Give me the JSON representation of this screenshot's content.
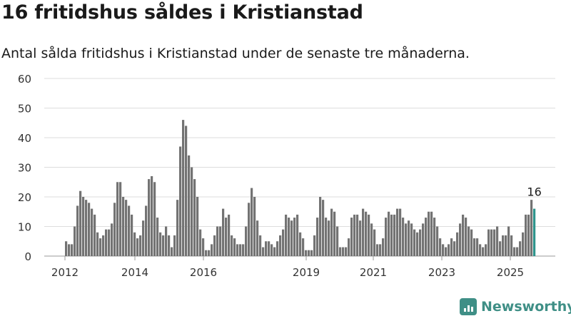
{
  "title": "16 fritidshus såldes i Kristianstad",
  "subtitle": "Antal sålda fritidshus i Kristianstad under de senaste tre månaderna.",
  "brand": {
    "name": "Newsworthy",
    "color": "#3f8f86",
    "icon": "newsworthy-chart-icon"
  },
  "chart_data": {
    "type": "bar",
    "title": "16 fritidshus såldes i Kristianstad",
    "subtitle": "Antal sålda fritidshus i Kristianstad under de senaste tre månaderna.",
    "xlabel": "",
    "ylabel": "",
    "ylim": [
      0,
      60
    ],
    "yticks": [
      0,
      10,
      20,
      30,
      40,
      50,
      60
    ],
    "xticks": [
      "2012",
      "2014",
      "2016",
      "2019",
      "2021",
      "2023",
      "2025"
    ],
    "grid": true,
    "colors": {
      "bar": "#737373",
      "highlight": "#2e948c",
      "grid": "#dddddd"
    },
    "highlight_label": "16",
    "series": [
      {
        "values": [
          5,
          4,
          4,
          10,
          17,
          22,
          20,
          19,
          18,
          16,
          14,
          8,
          6,
          7,
          9,
          9,
          11,
          18,
          25,
          25,
          20,
          19,
          17,
          14,
          8,
          6,
          7,
          12,
          17,
          26,
          27,
          25,
          13,
          8,
          7,
          10,
          7,
          3,
          7,
          19,
          37,
          46,
          44,
          34,
          30,
          26,
          20,
          9,
          6,
          2,
          2,
          4,
          7,
          10,
          10,
          16,
          13,
          14,
          7,
          6,
          4,
          4,
          4,
          10,
          18,
          23,
          20,
          12,
          7,
          3,
          5,
          5,
          4,
          3,
          5,
          7,
          9,
          14,
          13,
          12,
          13,
          14,
          8,
          6,
          2,
          2,
          2,
          7,
          13,
          20,
          19,
          13,
          12,
          16,
          15,
          10,
          3,
          3,
          3,
          6,
          13,
          14,
          14,
          12,
          16,
          15,
          14,
          11,
          9,
          4,
          4,
          6,
          13,
          15,
          14,
          14,
          16,
          16,
          13,
          11,
          12,
          11,
          9,
          8,
          9,
          11,
          13,
          15,
          15,
          13,
          10,
          6,
          4,
          3,
          4,
          6,
          5,
          8,
          11,
          14,
          13,
          10,
          9,
          6,
          6,
          4,
          3,
          4,
          9,
          9,
          9,
          10,
          5,
          7,
          7,
          10,
          7,
          3,
          3,
          5,
          8,
          14,
          14,
          19,
          16
        ]
      }
    ]
  }
}
